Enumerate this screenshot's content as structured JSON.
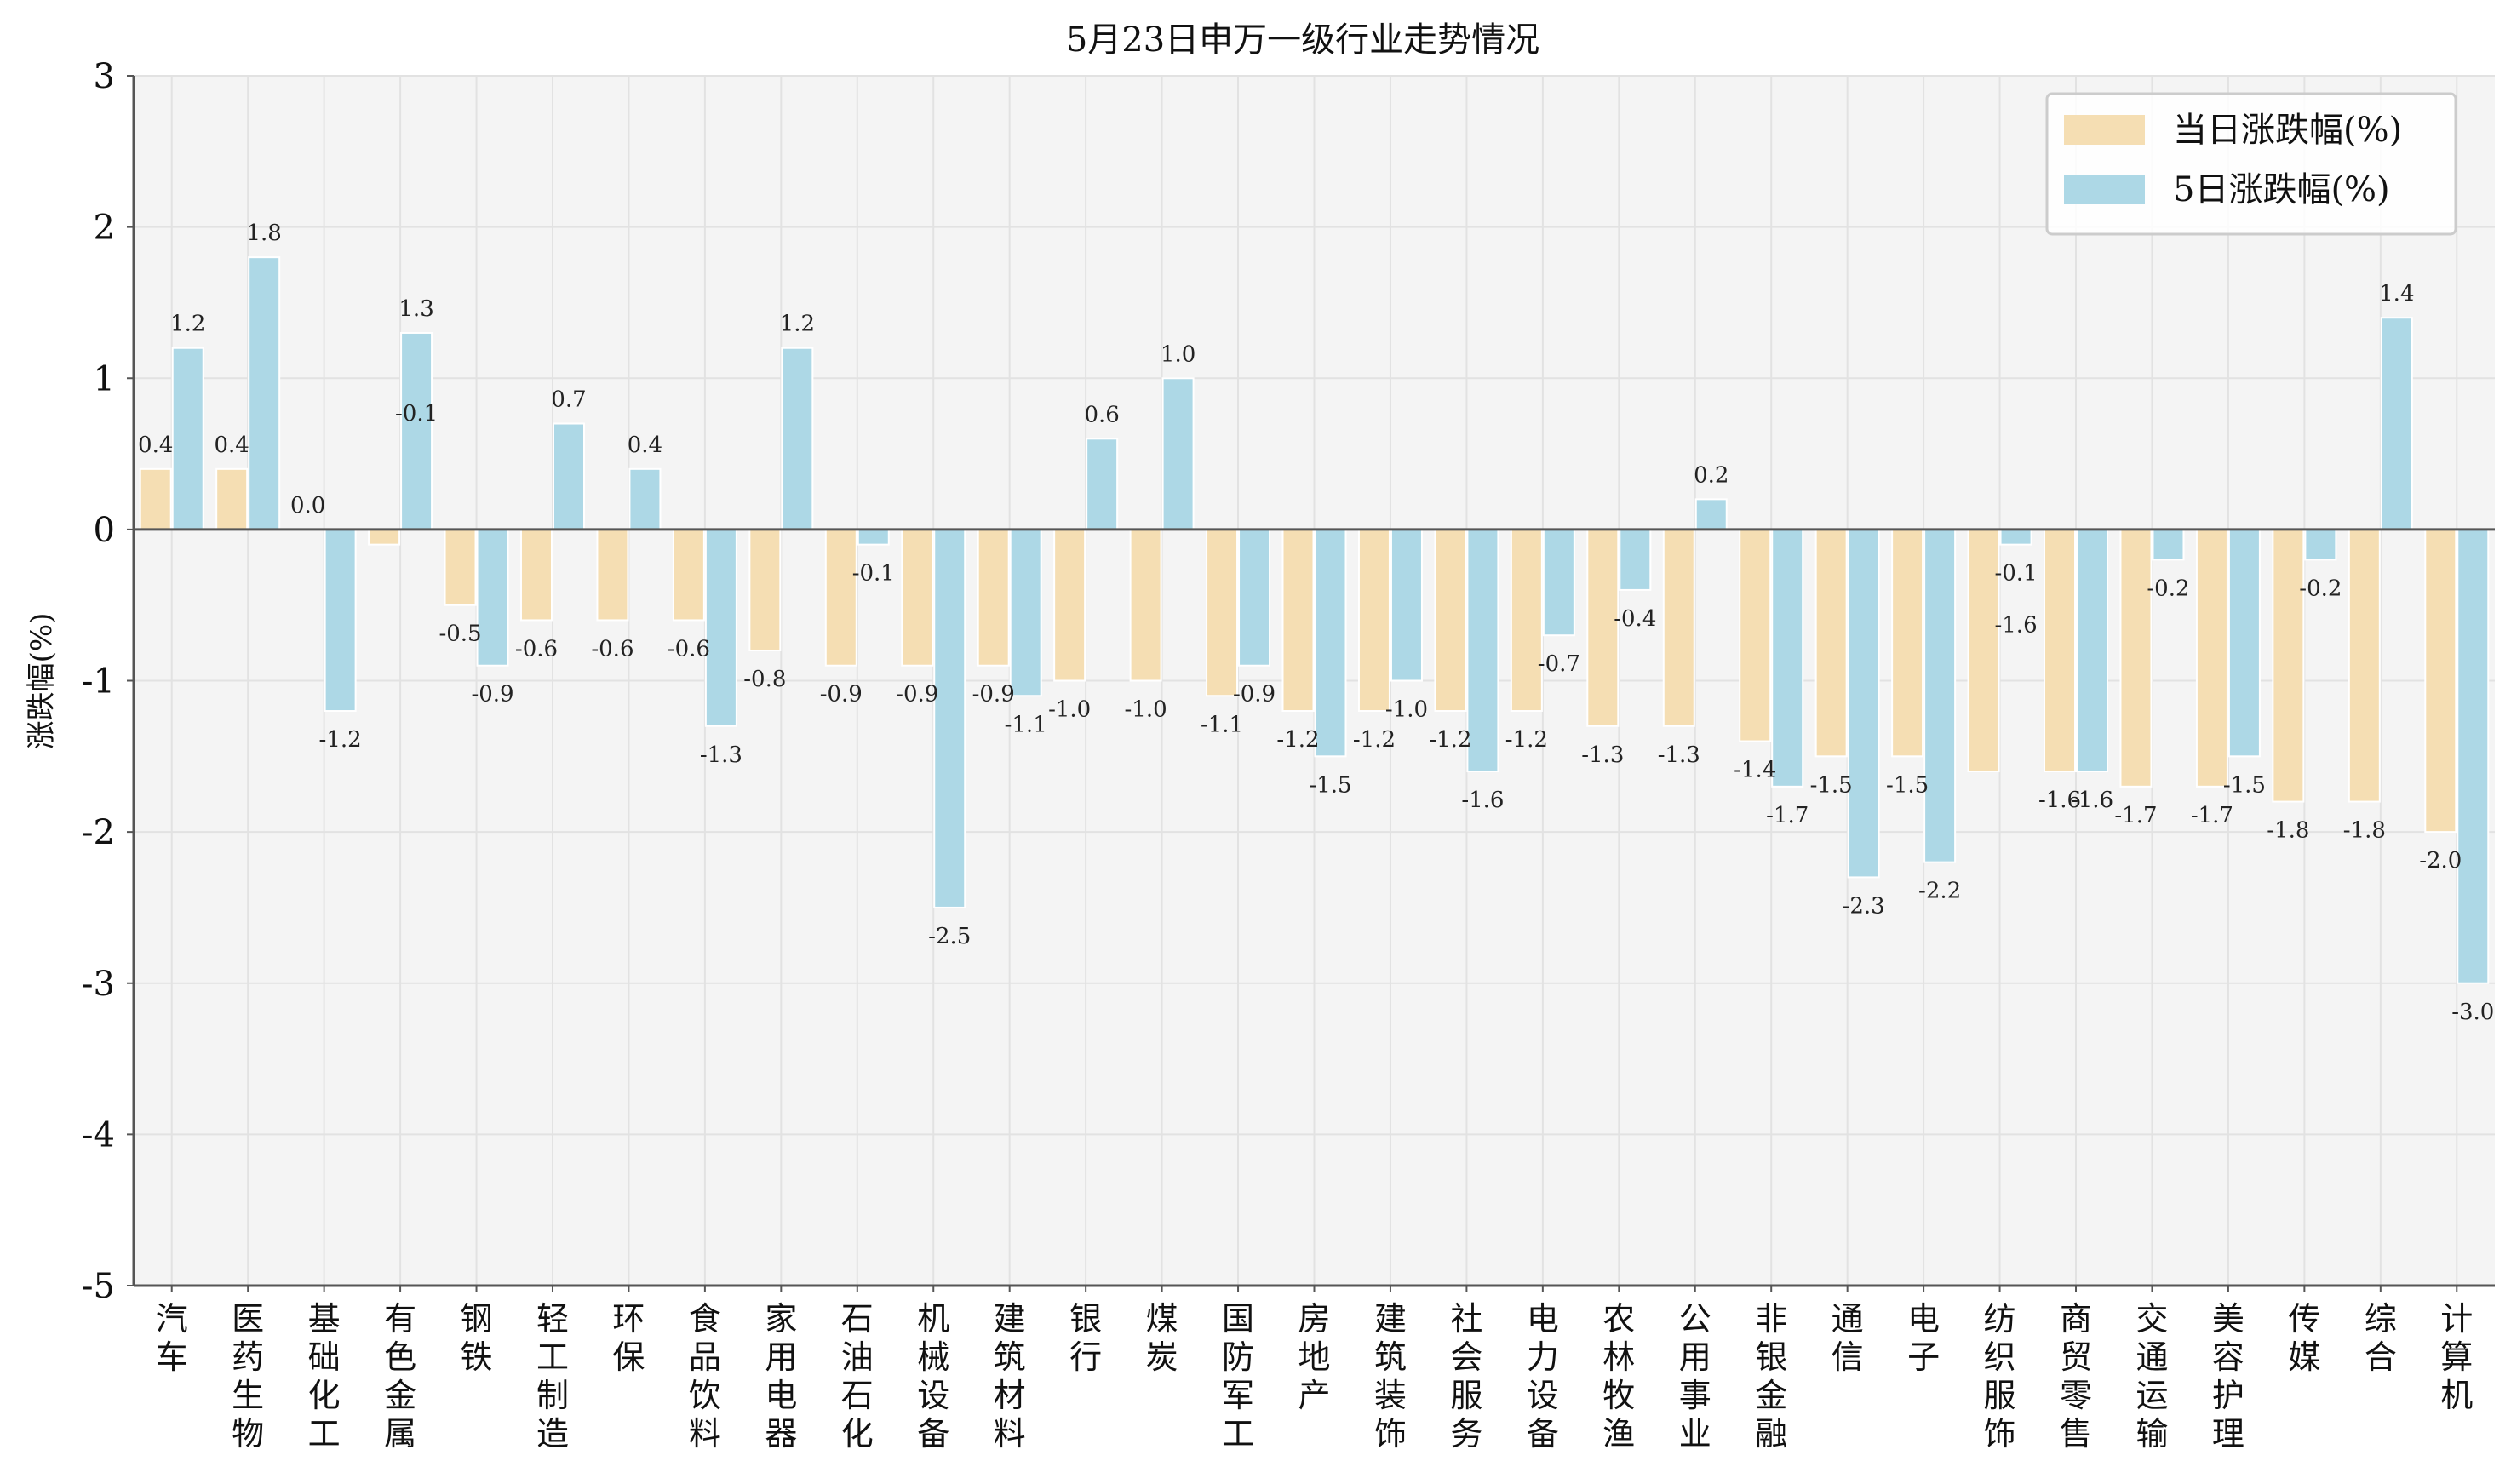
{
  "chart_data": {
    "type": "bar",
    "title": "5月23日申万一级行业走势情况",
    "ylabel": "涨跌幅(%)",
    "xlabel": "",
    "ylim": [
      -5,
      3
    ],
    "yticks": [
      3,
      2,
      1,
      0,
      -1,
      -2,
      -3,
      -4,
      -5
    ],
    "grid": true,
    "legend_position": "top-right",
    "colors": {
      "daily": "#F5DEB3",
      "five_day": "#ADD8E6",
      "plot_bg": "#F4F4F4",
      "grid": "#E2E2E2",
      "axis": "#555555"
    },
    "categories": [
      "汽车",
      "医药生物",
      "基础化工",
      "有色金属",
      "钢铁",
      "轻工制造",
      "环保",
      "食品饮料",
      "家用电器",
      "石油石化",
      "机械设备",
      "建筑材料",
      "银行",
      "煤炭",
      "国防军工",
      "房地产",
      "建筑装饰",
      "社会服务",
      "电力设备",
      "农林牧渔",
      "公用事业",
      "非银金融",
      "通信",
      "电子",
      "纺织服饰",
      "商贸零售",
      "交通运输",
      "美容护理",
      "传媒",
      "综合",
      "计算机"
    ],
    "series": [
      {
        "name": "当日涨跌幅(%)",
        "values": [
          0.4,
          0.4,
          0.0,
          -0.1,
          -0.5,
          -0.6,
          -0.6,
          -0.6,
          -0.8,
          -0.9,
          -0.9,
          -0.9,
          -1.0,
          -1.0,
          -1.1,
          -1.2,
          -1.2,
          -1.2,
          -1.2,
          -1.3,
          -1.3,
          -1.4,
          -1.5,
          -1.5,
          -1.6,
          -1.6,
          -1.7,
          -1.7,
          -1.8,
          -1.8,
          -2.0
        ],
        "labels": [
          "0.4",
          "0.4",
          "0.0",
          "",
          "-0.5",
          "-0.6",
          "-0.6",
          "-0.6",
          "-0.8",
          "-0.9",
          "-0.9",
          "-0.9",
          "-1.0",
          "-1.0",
          "-1.1",
          "-1.2",
          "-1.2",
          "-1.2",
          "-1.2",
          "-1.3",
          "-1.3",
          "-1.4",
          "-1.5",
          "-1.5",
          "",
          "-1.6",
          "-1.7",
          "-1.7",
          "-1.8",
          "-1.8",
          "-2.0"
        ]
      },
      {
        "name": "5日涨跌幅(%)",
        "values": [
          1.2,
          1.8,
          -1.2,
          1.3,
          -0.9,
          0.7,
          0.4,
          -1.3,
          1.2,
          -0.1,
          -2.5,
          -1.1,
          0.6,
          1.0,
          -0.9,
          -1.5,
          -1.0,
          -1.6,
          -0.7,
          -0.4,
          0.2,
          -1.7,
          -2.3,
          -2.2,
          -0.1,
          -1.6,
          -0.2,
          -1.5,
          -0.2,
          1.4,
          -3.0
        ],
        "labels": [
          "1.2",
          "1.8",
          "-1.2",
          "1.3",
          "-0.9",
          "0.7",
          "0.4",
          "-1.3",
          "1.2",
          "-0.1",
          "-2.5",
          "-1.1",
          "0.6",
          "1.0",
          "-0.9",
          "-1.5",
          "-1.0",
          "-1.6",
          "-0.7",
          "-0.4",
          "0.2",
          "-1.7",
          "-2.3",
          "-2.2",
          "-0.1",
          "-1.6",
          "-0.2",
          "-1.5",
          "-0.2",
          "1.4",
          "-3.0"
        ]
      }
    ],
    "extra_labels": [
      {
        "category_index": 3,
        "text": "-0.1"
      },
      {
        "category_index": 24,
        "text": "-1.6"
      }
    ]
  }
}
